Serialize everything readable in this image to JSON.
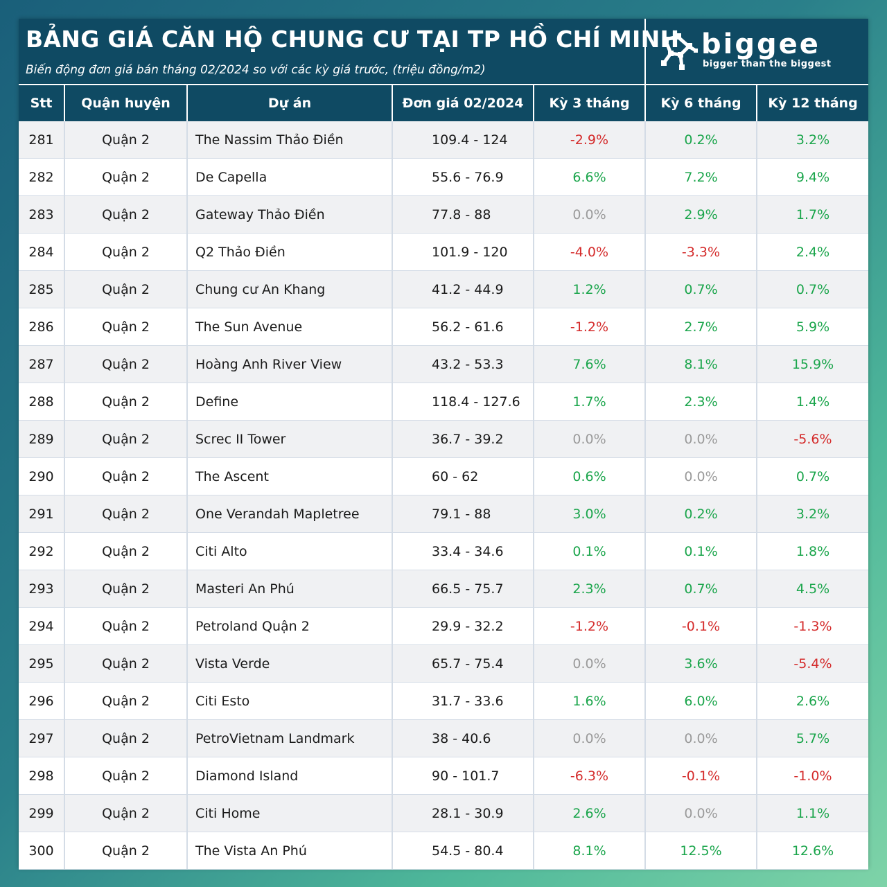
{
  "header": {
    "title": "BẢNG GIÁ CĂN HỘ CHUNG CƯ TẠI TP HỒ CHÍ MINH",
    "subtitle": "Biến động đơn giá bán tháng 02/2024 so với các kỳ giá trước, (triệu đồng/m2)"
  },
  "logo": {
    "name": "biggee",
    "tagline": "bigger than the biggest",
    "icon": "biggee-network-logo-icon"
  },
  "colors": {
    "header_bg": "#0f4a63",
    "negative": "#d42a2a",
    "positive": "#1aa54b",
    "zero": "#9a9a9a"
  },
  "table": {
    "columns": [
      "Stt",
      "Quận huyện",
      "Dự án",
      "Đơn giá 02/2024",
      "Kỳ 3 tháng",
      "Kỳ 6 tháng",
      "Kỳ 12 tháng"
    ],
    "rows": [
      [
        "281",
        "Quận 2",
        "The Nassim Thảo Điền",
        "109.4 - 124",
        "-2.9%",
        "0.2%",
        "3.2%"
      ],
      [
        "282",
        "Quận 2",
        "De Capella",
        "55.6 - 76.9",
        "6.6%",
        "7.2%",
        "9.4%"
      ],
      [
        "283",
        "Quận 2",
        "Gateway Thảo Điền",
        "77.8 - 88",
        "0.0%",
        "2.9%",
        "1.7%"
      ],
      [
        "284",
        "Quận 2",
        "Q2 Thảo Điền",
        "101.9 - 120",
        "-4.0%",
        "-3.3%",
        "2.4%"
      ],
      [
        "285",
        "Quận 2",
        "Chung cư An Khang",
        "41.2 - 44.9",
        "1.2%",
        "0.7%",
        "0.7%"
      ],
      [
        "286",
        "Quận 2",
        "The Sun Avenue",
        "56.2 - 61.6",
        "-1.2%",
        "2.7%",
        "5.9%"
      ],
      [
        "287",
        "Quận 2",
        "Hoàng Anh River View",
        "43.2 - 53.3",
        "7.6%",
        "8.1%",
        "15.9%"
      ],
      [
        "288",
        "Quận 2",
        "Define",
        "118.4 - 127.6",
        "1.7%",
        "2.3%",
        "1.4%"
      ],
      [
        "289",
        "Quận 2",
        "Screc II Tower",
        "36.7 - 39.2",
        "0.0%",
        "0.0%",
        "-5.6%"
      ],
      [
        "290",
        "Quận 2",
        "The Ascent",
        "60 - 62",
        "0.6%",
        "0.0%",
        "0.7%"
      ],
      [
        "291",
        "Quận 2",
        "One Verandah Mapletree",
        "79.1 - 88",
        "3.0%",
        "0.2%",
        "3.2%"
      ],
      [
        "292",
        "Quận 2",
        "Citi Alto",
        "33.4 - 34.6",
        "0.1%",
        "0.1%",
        "1.8%"
      ],
      [
        "293",
        "Quận 2",
        "Masteri An Phú",
        "66.5 - 75.7",
        "2.3%",
        "0.7%",
        "4.5%"
      ],
      [
        "294",
        "Quận 2",
        "Petroland Quận 2",
        "29.9 - 32.2",
        "-1.2%",
        "-0.1%",
        "-1.3%"
      ],
      [
        "295",
        "Quận 2",
        "Vista Verde",
        "65.7 - 75.4",
        "0.0%",
        "3.6%",
        "-5.4%"
      ],
      [
        "296",
        "Quận 2",
        "Citi Esto",
        "31.7 - 33.6",
        "1.6%",
        "6.0%",
        "2.6%"
      ],
      [
        "297",
        "Quận 2",
        "PetroVietnam Landmark",
        "38 - 40.6",
        "0.0%",
        "0.0%",
        "5.7%"
      ],
      [
        "298",
        "Quận 2",
        "Diamond Island",
        "90 - 101.7",
        "-6.3%",
        "-0.1%",
        "-1.0%"
      ],
      [
        "299",
        "Quận 2",
        "Citi Home",
        "28.1 - 30.9",
        "2.6%",
        "0.0%",
        "1.1%"
      ],
      [
        "300",
        "Quận 2",
        "The Vista An Phú",
        "54.5 - 80.4",
        "8.1%",
        "12.5%",
        "12.6%"
      ]
    ]
  }
}
